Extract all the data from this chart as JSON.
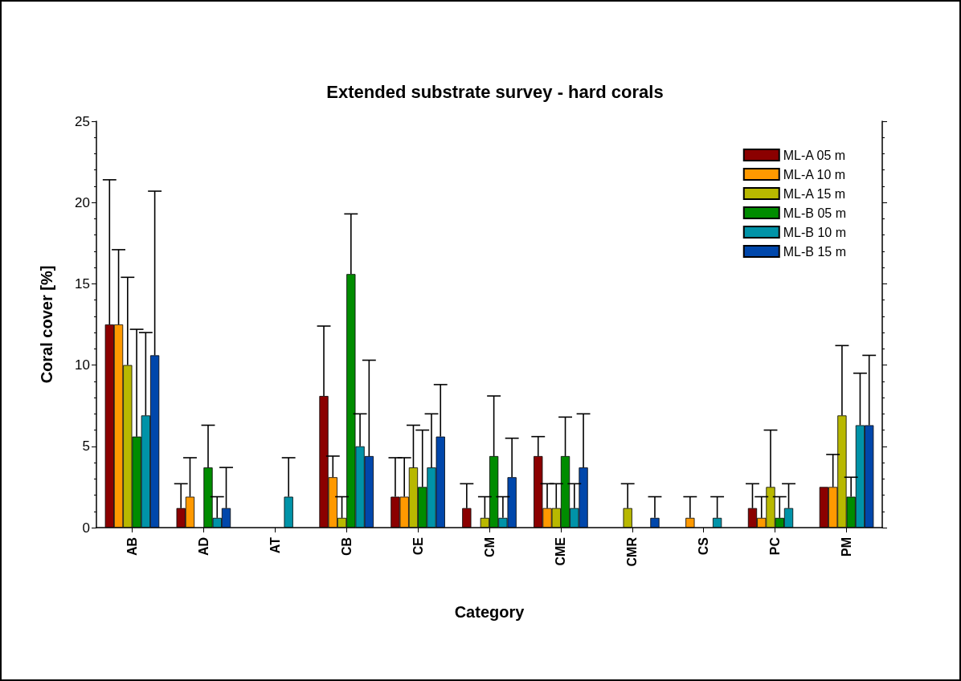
{
  "chart_data": {
    "type": "bar",
    "title": "Extended substrate survey - hard corals",
    "xlabel": "Category",
    "ylabel": "Coral cover [%]",
    "categories": [
      "AB",
      "AD",
      "AT",
      "CB",
      "CE",
      "CM",
      "CME",
      "CMR",
      "CS",
      "PC",
      "PM"
    ],
    "ylim": [
      0,
      25
    ],
    "yticks": [
      0,
      5,
      10,
      15,
      20,
      25
    ],
    "grid": false,
    "legend": "top right",
    "series": [
      {
        "name": "ML-A 05 m",
        "color": "#8b0000",
        "values": [
          12.5,
          1.2,
          null,
          8.1,
          1.9,
          1.2,
          4.4,
          null,
          null,
          1.2,
          2.5
        ],
        "errors": [
          [
            12.5,
            21.4
          ],
          [
            1.2,
            2.7
          ],
          null,
          [
            8.1,
            12.4
          ],
          [
            1.9,
            4.3
          ],
          [
            1.2,
            2.7
          ],
          [
            4.4,
            5.6
          ],
          null,
          null,
          [
            1.2,
            2.7
          ],
          null
        ]
      },
      {
        "name": "ML-A 10 m",
        "color": "#ff9900",
        "values": [
          12.5,
          1.9,
          null,
          3.1,
          1.9,
          null,
          1.2,
          null,
          0.6,
          0.6,
          2.5
        ],
        "errors": [
          [
            12.5,
            17.1
          ],
          [
            1.9,
            4.3
          ],
          null,
          [
            3.1,
            4.4
          ],
          [
            1.9,
            4.3
          ],
          null,
          [
            1.2,
            2.7
          ],
          null,
          [
            0.6,
            1.9
          ],
          [
            0.6,
            1.9
          ],
          [
            2.5,
            4.5
          ]
        ]
      },
      {
        "name": "ML-A 15 m",
        "color": "#b8b800",
        "values": [
          10.0,
          null,
          null,
          0.6,
          3.7,
          0.6,
          1.2,
          1.2,
          null,
          2.5,
          6.9
        ],
        "errors": [
          [
            10.0,
            15.4
          ],
          null,
          null,
          [
            0.6,
            1.9
          ],
          [
            3.7,
            6.3
          ],
          [
            0.6,
            1.9
          ],
          [
            1.2,
            2.7
          ],
          [
            1.2,
            2.7
          ],
          null,
          [
            2.5,
            6.0
          ],
          [
            6.9,
            11.2
          ]
        ]
      },
      {
        "name": "ML-B 05 m",
        "color": "#008c00",
        "values": [
          5.6,
          3.7,
          null,
          15.6,
          2.5,
          4.4,
          4.4,
          null,
          null,
          0.6,
          1.9
        ],
        "errors": [
          [
            5.6,
            12.2
          ],
          [
            3.7,
            6.3
          ],
          null,
          [
            15.6,
            19.3
          ],
          [
            2.5,
            6.0
          ],
          [
            4.4,
            8.1
          ],
          [
            4.4,
            6.8
          ],
          null,
          null,
          [
            0.6,
            1.9
          ],
          [
            1.9,
            3.1
          ]
        ]
      },
      {
        "name": "ML-B 10 m",
        "color": "#0093a8",
        "values": [
          6.9,
          0.6,
          1.9,
          5.0,
          3.7,
          0.6,
          1.2,
          null,
          0.6,
          1.2,
          6.3
        ],
        "errors": [
          [
            6.9,
            12.0
          ],
          [
            0.6,
            1.9
          ],
          [
            1.9,
            4.3
          ],
          [
            5.0,
            7.0
          ],
          [
            3.7,
            7.0
          ],
          [
            0.6,
            1.9
          ],
          [
            1.2,
            2.7
          ],
          null,
          [
            0.6,
            1.9
          ],
          [
            1.2,
            2.7
          ],
          [
            6.3,
            9.5
          ]
        ]
      },
      {
        "name": "ML-B 15 m",
        "color": "#0047ab",
        "values": [
          10.6,
          1.2,
          null,
          4.4,
          5.6,
          3.1,
          3.7,
          0.6,
          null,
          null,
          6.3
        ],
        "errors": [
          [
            10.6,
            20.7
          ],
          [
            1.2,
            3.7
          ],
          null,
          [
            4.4,
            10.3
          ],
          [
            5.6,
            8.8
          ],
          [
            3.1,
            5.5
          ],
          [
            3.7,
            7.0
          ],
          [
            0.6,
            1.9
          ],
          null,
          null,
          [
            6.3,
            10.6
          ]
        ]
      }
    ]
  }
}
